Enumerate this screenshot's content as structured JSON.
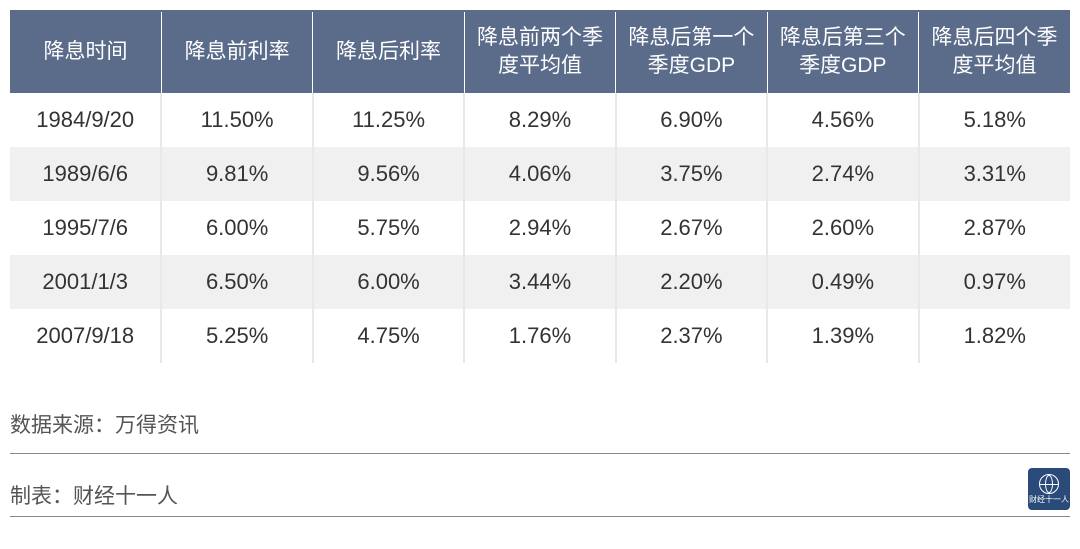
{
  "table": {
    "header_bg": "#5b6b8a",
    "header_fg": "#ffffff",
    "row_alt_bg": "#f0f0f0",
    "cell_border": "#e8e8e8",
    "columns": [
      "降息时间",
      "降息前利率",
      "降息后利率",
      "降息前两个季度平均值",
      "降息后第一个季度GDP",
      "降息后第三个季度GDP",
      "降息后四个季度平均值"
    ],
    "rows": [
      [
        "1984/9/20",
        "11.50%",
        "11.25%",
        "8.29%",
        "6.90%",
        "4.56%",
        "5.18%"
      ],
      [
        "1989/6/6",
        "9.81%",
        "9.56%",
        "4.06%",
        "3.75%",
        "2.74%",
        "3.31%"
      ],
      [
        "1995/7/6",
        "6.00%",
        "5.75%",
        "2.94%",
        "2.67%",
        "2.60%",
        "2.87%"
      ],
      [
        "2001/1/3",
        "6.50%",
        "6.00%",
        "3.44%",
        "2.20%",
        "0.49%",
        "0.97%"
      ],
      [
        "2007/9/18",
        "5.25%",
        "4.75%",
        "1.76%",
        "2.37%",
        "1.39%",
        "1.82%"
      ]
    ]
  },
  "footer": {
    "source_label": "数据来源：万得资讯",
    "maker_label": "制表：财经十一人",
    "logo_text": "财经十一人",
    "logo_bg": "#2a4a7a"
  }
}
